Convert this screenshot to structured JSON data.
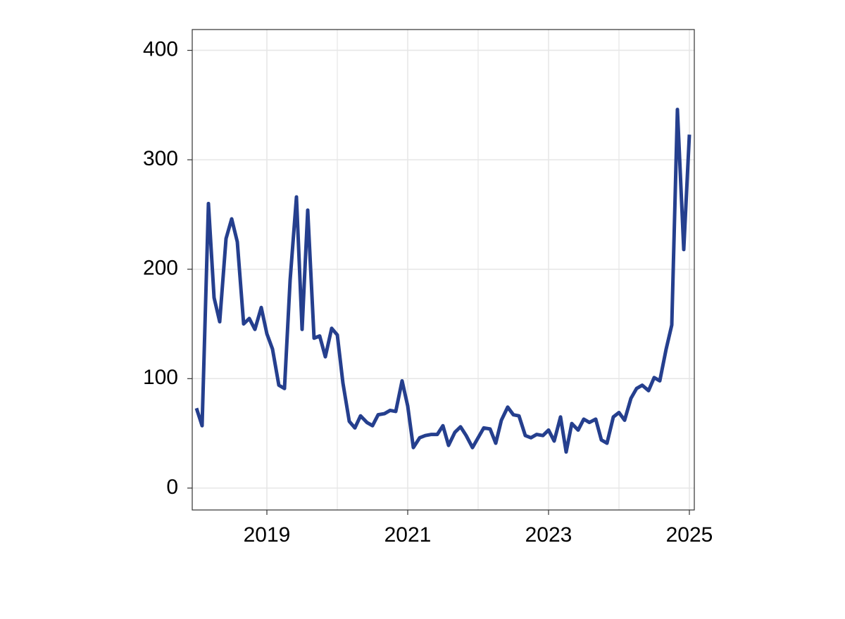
{
  "chart_data": {
    "type": "line",
    "x": [
      2018,
      2018.08,
      2018.17,
      2018.25,
      2018.33,
      2018.42,
      2018.5,
      2018.58,
      2018.67,
      2018.75,
      2018.83,
      2018.92,
      2019,
      2019.08,
      2019.17,
      2019.25,
      2019.33,
      2019.42,
      2019.5,
      2019.58,
      2019.67,
      2019.75,
      2019.83,
      2019.92,
      2020,
      2020.08,
      2020.17,
      2020.25,
      2020.33,
      2020.42,
      2020.5,
      2020.58,
      2020.67,
      2020.75,
      2020.83,
      2020.92,
      2021,
      2021.08,
      2021.17,
      2021.25,
      2021.33,
      2021.42,
      2021.5,
      2021.58,
      2021.67,
      2021.75,
      2021.83,
      2021.92,
      2022,
      2022.08,
      2022.17,
      2022.25,
      2022.33,
      2022.42,
      2022.5,
      2022.58,
      2022.67,
      2022.75,
      2022.83,
      2022.92,
      2023,
      2023.08,
      2023.17,
      2023.25,
      2023.33,
      2023.42,
      2023.5,
      2023.58,
      2023.67,
      2023.75,
      2023.83,
      2023.92,
      2024,
      2024.08,
      2024.17,
      2024.25,
      2024.33,
      2024.42,
      2024.5,
      2024.58,
      2024.67,
      2024.75,
      2024.83,
      2024.92,
      2025
    ],
    "series": [
      {
        "color": "#253f8e",
        "values": [
          73,
          57,
          260,
          174,
          152,
          228,
          246,
          225,
          150,
          155,
          145,
          165,
          141,
          127,
          94,
          91,
          190,
          266,
          145,
          254,
          137,
          139,
          120,
          146,
          140,
          96,
          61,
          55,
          66,
          60,
          57,
          67,
          68,
          71,
          70,
          98,
          75,
          37,
          46,
          48,
          49,
          49,
          57,
          39,
          51,
          56,
          48,
          37,
          46,
          55,
          54,
          41,
          62,
          74,
          67,
          66,
          48,
          46,
          49,
          48,
          53,
          43,
          65,
          33,
          59,
          53,
          63,
          60,
          63,
          44,
          41,
          65,
          69,
          62,
          82,
          91,
          94,
          89,
          101,
          98,
          127,
          149,
          346,
          218,
          323
        ]
      }
    ],
    "xlim": [
      2017.94,
      2025.07
    ],
    "xticks": [
      2019,
      2021,
      2023,
      2025
    ],
    "ylim": [
      -20,
      419
    ],
    "yticks": [
      0,
      100,
      200,
      300,
      400
    ],
    "grid": true
  }
}
